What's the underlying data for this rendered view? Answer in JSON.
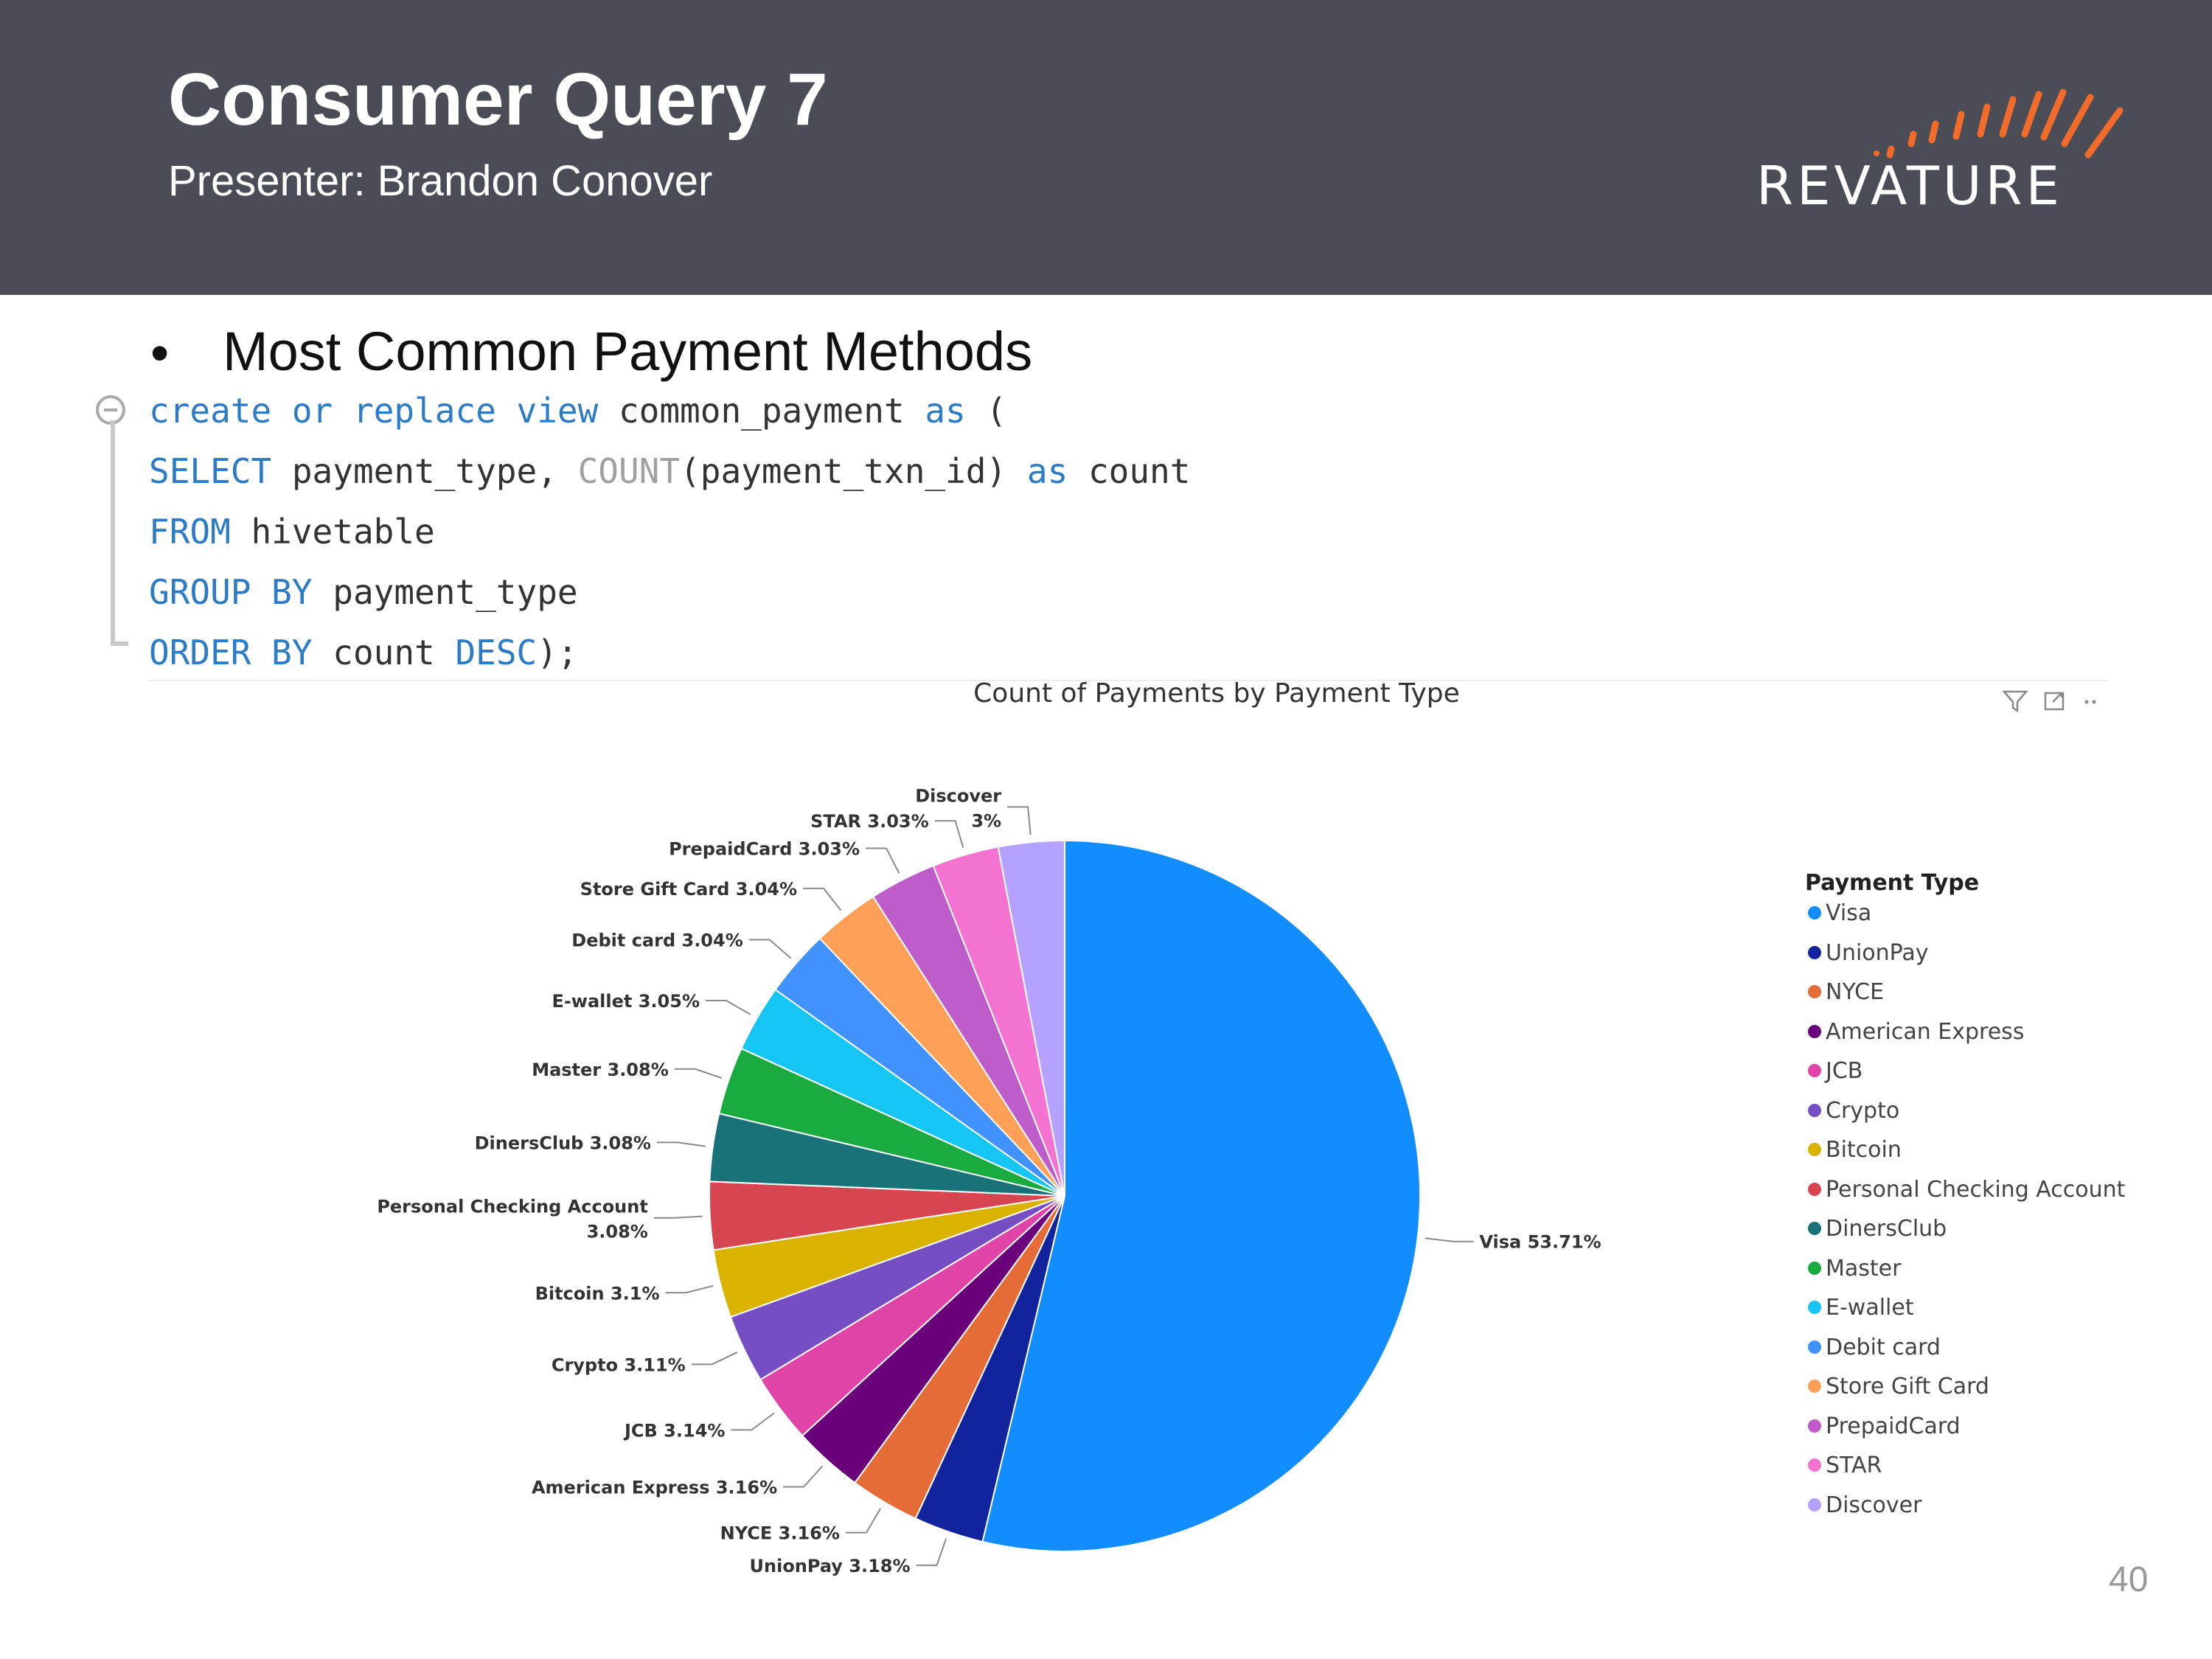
{
  "slide": {
    "title": "Consumer Query 7",
    "subtitle": "Presenter: Brandon Conover",
    "logo_text": "REVATURE",
    "bullet": "Most Common Payment Methods",
    "page_number": "40"
  },
  "code": {
    "line1": {
      "a": "create or replace view",
      "b": " common_payment ",
      "c": "as",
      "d": " ("
    },
    "line2": {
      "a": "SELECT",
      "b": " payment_type, ",
      "c": "COUNT",
      "d": "(payment_txn_id) ",
      "e": "as",
      "f": " count"
    },
    "line3": {
      "a": "FROM",
      "b": " hivetable"
    },
    "line4": {
      "a": "GROUP BY",
      "b": " payment_type"
    },
    "line5": {
      "a": "ORDER BY",
      "b": " count ",
      "c": "DESC",
      "d": ");"
    }
  },
  "icons": {
    "filter": "filter-icon",
    "focus": "focus-mode-icon",
    "more": "more-options-icon",
    "collapse": "collapse-icon"
  },
  "chart_data": {
    "type": "pie",
    "title": "Count of Payments by Payment Type",
    "legend_title": "Payment Type",
    "legend_position": "right",
    "slices": [
      {
        "name": "Visa",
        "value": 53.71,
        "label": "Visa 53.71%",
        "color": "#118dff"
      },
      {
        "name": "UnionPay",
        "value": 3.18,
        "label": "UnionPay 3.18%",
        "color": "#12239e"
      },
      {
        "name": "NYCE",
        "value": 3.16,
        "label": "NYCE 3.16%",
        "color": "#e66c37"
      },
      {
        "name": "American Express",
        "value": 3.16,
        "label": "American Express 3.16%",
        "color": "#6b007b"
      },
      {
        "name": "JCB",
        "value": 3.14,
        "label": "JCB 3.14%",
        "color": "#e044a7"
      },
      {
        "name": "Crypto",
        "value": 3.11,
        "label": "Crypto 3.11%",
        "color": "#744ec2"
      },
      {
        "name": "Bitcoin",
        "value": 3.1,
        "label": "Bitcoin 3.1%",
        "color": "#d9b300"
      },
      {
        "name": "Personal Checking Account",
        "value": 3.08,
        "label": "Personal Checking Account\n3.08%",
        "color": "#d64550"
      },
      {
        "name": "DinersClub",
        "value": 3.08,
        "label": "DinersClub 3.08%",
        "color": "#197278"
      },
      {
        "name": "Master",
        "value": 3.08,
        "label": "Master 3.08%",
        "color": "#1aab40"
      },
      {
        "name": "E-wallet",
        "value": 3.05,
        "label": "E-wallet 3.05%",
        "color": "#15c6f4"
      },
      {
        "name": "Debit card",
        "value": 3.04,
        "label": "Debit card 3.04%",
        "color": "#4092ff"
      },
      {
        "name": "Store Gift Card",
        "value": 3.04,
        "label": "Store Gift Card 3.04%",
        "color": "#ffa058"
      },
      {
        "name": "PrepaidCard",
        "value": 3.03,
        "label": "PrepaidCard 3.03%",
        "color": "#be5dc9"
      },
      {
        "name": "STAR",
        "value": 3.03,
        "label": "STAR 3.03%",
        "color": "#f472d0"
      },
      {
        "name": "Discover",
        "value": 3,
        "label": "Discover\n3%",
        "color": "#b5a1ff"
      }
    ]
  }
}
